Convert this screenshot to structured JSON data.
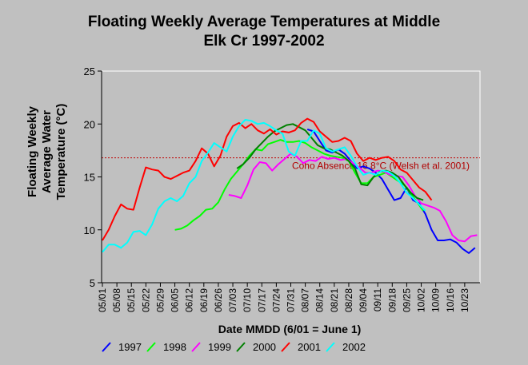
{
  "chart_data": {
    "type": "line",
    "title_lines": [
      "Floating Weekly Average Temperatures at Middle",
      "Elk Cr 1997-2002"
    ],
    "ylabel_lines": [
      "Floating Weekly",
      "Average Water",
      "Temperature (°C)"
    ],
    "xlabel": "Date MMDD (6/01 = June 1)",
    "ylim": [
      5,
      25
    ],
    "yticks": [
      5,
      10,
      15,
      20,
      25
    ],
    "xlim": [
      "05/01",
      "10/30"
    ],
    "xticks": [
      "05/01",
      "05/08",
      "05/15",
      "05/22",
      "05/29",
      "06/05",
      "06/12",
      "06/19",
      "06/26",
      "07/03",
      "07/10",
      "07/17",
      "07/24",
      "07/31",
      "08/07",
      "08/14",
      "08/21",
      "08/28",
      "09/04",
      "09/11",
      "09/18",
      "09/25",
      "10/02",
      "10/09",
      "10/16",
      "10/23"
    ],
    "grid": false,
    "legend_position": "bottom",
    "reference_line": {
      "y": 16.8,
      "label": "Coho Absence 16.8°C (Welsh et al. 2001)",
      "color": "#c00000"
    },
    "series": [
      {
        "name": "1997",
        "color": "#0000ff",
        "x": [
          "08/08",
          "08/11",
          "08/14",
          "08/17",
          "08/20",
          "08/23",
          "08/26",
          "08/29",
          "09/01",
          "09/04",
          "09/07",
          "09/10",
          "09/13",
          "09/16",
          "09/19",
          "09/22",
          "09/25",
          "09/28",
          "10/01",
          "10/04",
          "10/07",
          "10/10",
          "10/13",
          "10/16",
          "10/19",
          "10/22",
          "10/25",
          "10/28"
        ],
        "y": [
          19.5,
          19.3,
          18.4,
          17.5,
          17.3,
          17.6,
          17.2,
          16.5,
          15.8,
          16.0,
          15.8,
          15.4,
          14.8,
          13.8,
          12.8,
          13.0,
          14.0,
          12.8,
          12.5,
          11.5,
          10.0,
          9.0,
          9.0,
          9.1,
          8.8,
          8.2,
          7.8,
          8.3
        ]
      },
      {
        "name": "1998",
        "color": "#00ff00",
        "x": [
          "06/05",
          "06/08",
          "06/11",
          "06/14",
          "06/17",
          "06/20",
          "06/23",
          "06/26",
          "06/29",
          "07/02",
          "07/05",
          "07/08",
          "07/11",
          "07/14",
          "07/17",
          "07/20",
          "07/23",
          "07/26",
          "07/29",
          "08/01",
          "08/04",
          "08/07",
          "08/10",
          "08/13",
          "08/16",
          "08/19",
          "08/22",
          "08/25",
          "08/28",
          "08/31",
          "09/03",
          "09/06",
          "09/09",
          "09/12",
          "09/15",
          "09/18",
          "09/21",
          "09/24",
          "09/27",
          "09/30",
          "10/03"
        ],
        "y": [
          10.0,
          10.1,
          10.4,
          10.9,
          11.3,
          11.9,
          12.0,
          12.6,
          13.8,
          14.8,
          15.5,
          16.2,
          17.0,
          17.6,
          17.5,
          18.1,
          18.3,
          18.5,
          18.3,
          18.3,
          18.4,
          18.2,
          17.8,
          17.5,
          17.2,
          17.0,
          16.9,
          16.8,
          16.5,
          15.4,
          14.4,
          14.4,
          15.0,
          15.2,
          15.4,
          15.0,
          14.6,
          14.2,
          13.4,
          12.6,
          11.8
        ]
      },
      {
        "name": "1999",
        "color": "#ff00ff",
        "x": [
          "07/01",
          "07/04",
          "07/07",
          "07/10",
          "07/13",
          "07/16",
          "07/19",
          "07/22",
          "07/25",
          "07/28",
          "07/31",
          "08/03",
          "08/06",
          "08/09",
          "08/12",
          "08/15",
          "08/18",
          "08/21",
          "08/24",
          "08/27",
          "08/30",
          "09/02",
          "09/05",
          "09/08",
          "09/11",
          "09/14",
          "09/17",
          "09/20",
          "09/23",
          "09/26",
          "09/29",
          "10/02",
          "10/05",
          "10/08",
          "10/11",
          "10/14",
          "10/17",
          "10/20",
          "10/23",
          "10/26",
          "10/29"
        ],
        "y": [
          13.3,
          13.2,
          13.0,
          14.2,
          15.7,
          16.4,
          16.3,
          15.6,
          16.2,
          16.7,
          17.2,
          16.9,
          16.3,
          16.6,
          16.5,
          16.9,
          16.7,
          16.8,
          16.6,
          16.7,
          16.3,
          15.9,
          15.4,
          15.4,
          15.6,
          15.5,
          15.2,
          15.1,
          15.0,
          14.2,
          13.2,
          12.5,
          12.3,
          12.1,
          11.8,
          10.8,
          9.5,
          9.0,
          8.9,
          9.4,
          9.5
        ]
      },
      {
        "name": "2000",
        "color": "#008000",
        "x": [
          "07/05",
          "07/08",
          "07/11",
          "07/14",
          "07/17",
          "07/20",
          "07/23",
          "07/26",
          "07/29",
          "08/01",
          "08/04",
          "08/07",
          "08/10",
          "08/13",
          "08/16",
          "08/19",
          "08/22",
          "08/25",
          "08/28",
          "08/31",
          "09/03",
          "09/06",
          "09/09",
          "09/12",
          "09/15",
          "09/18",
          "09/21",
          "09/24",
          "09/27",
          "09/30",
          "10/03"
        ],
        "y": [
          15.8,
          16.2,
          16.8,
          17.6,
          18.2,
          18.8,
          19.3,
          19.6,
          19.9,
          20.0,
          19.7,
          19.4,
          18.7,
          18.0,
          17.7,
          17.6,
          17.3,
          17.0,
          16.5,
          15.8,
          14.3,
          14.2,
          15.0,
          15.5,
          15.6,
          15.4,
          15.0,
          14.2,
          13.5,
          13.0,
          12.8
        ]
      },
      {
        "name": "2001",
        "color": "#ff0000",
        "x": [
          "05/01",
          "05/04",
          "05/07",
          "05/10",
          "05/13",
          "05/16",
          "05/19",
          "05/22",
          "05/25",
          "05/28",
          "05/31",
          "06/03",
          "06/06",
          "06/09",
          "06/12",
          "06/15",
          "06/18",
          "06/21",
          "06/24",
          "06/27",
          "06/30",
          "07/03",
          "07/06",
          "07/09",
          "07/12",
          "07/15",
          "07/18",
          "07/21",
          "07/24",
          "07/27",
          "07/30",
          "08/02",
          "08/05",
          "08/08",
          "08/11",
          "08/14",
          "08/17",
          "08/20",
          "08/23",
          "08/26",
          "08/29",
          "09/01",
          "09/04",
          "09/07",
          "09/10",
          "09/13",
          "09/16",
          "09/19",
          "09/22",
          "09/25",
          "09/28",
          "10/01",
          "10/04",
          "10/07"
        ],
        "y": [
          9.0,
          10.0,
          11.3,
          12.4,
          12.0,
          11.9,
          14.0,
          15.9,
          15.7,
          15.6,
          15.0,
          14.8,
          15.1,
          15.4,
          15.6,
          16.5,
          17.7,
          17.2,
          16.0,
          17.0,
          18.8,
          19.8,
          20.1,
          19.6,
          20.0,
          19.4,
          19.1,
          19.5,
          19.0,
          19.3,
          19.2,
          19.4,
          20.1,
          20.5,
          20.2,
          19.3,
          18.8,
          18.3,
          18.4,
          18.7,
          18.4,
          17.2,
          16.5,
          16.8,
          16.6,
          16.8,
          16.9,
          16.5,
          15.7,
          15.4,
          14.7,
          14.0,
          13.6,
          12.8
        ]
      },
      {
        "name": "2002",
        "color": "#00ffff",
        "x": [
          "05/01",
          "05/04",
          "05/07",
          "05/10",
          "05/13",
          "05/16",
          "05/19",
          "05/22",
          "05/25",
          "05/28",
          "05/31",
          "06/03",
          "06/06",
          "06/09",
          "06/12",
          "06/15",
          "06/18",
          "06/21",
          "06/24",
          "06/27",
          "06/30",
          "07/03",
          "07/06",
          "07/09",
          "07/12",
          "07/15",
          "07/18",
          "07/21",
          "07/24",
          "07/27",
          "07/30",
          "08/02",
          "08/05",
          "08/08",
          "08/11",
          "08/14",
          "08/17",
          "08/20",
          "08/23",
          "08/26",
          "08/29",
          "09/01",
          "09/04",
          "09/07",
          "09/10",
          "09/13",
          "09/16",
          "09/19",
          "09/22",
          "09/25",
          "09/28",
          "10/01",
          "10/04"
        ],
        "y": [
          7.9,
          8.6,
          8.6,
          8.3,
          8.8,
          9.8,
          9.9,
          9.5,
          10.5,
          12.0,
          12.7,
          13.0,
          12.7,
          13.2,
          14.4,
          15.0,
          16.5,
          17.3,
          18.2,
          17.8,
          17.4,
          18.8,
          19.8,
          20.4,
          20.3,
          20.0,
          20.1,
          19.8,
          19.4,
          19.1,
          17.4,
          17.0,
          18.4,
          18.4,
          19.4,
          19.1,
          17.7,
          17.4,
          17.6,
          17.8,
          17.0,
          16.0,
          15.2,
          15.4,
          15.2,
          15.6,
          15.5,
          15.1,
          14.4,
          13.5,
          13.0,
          12.4,
          11.8
        ]
      }
    ]
  }
}
